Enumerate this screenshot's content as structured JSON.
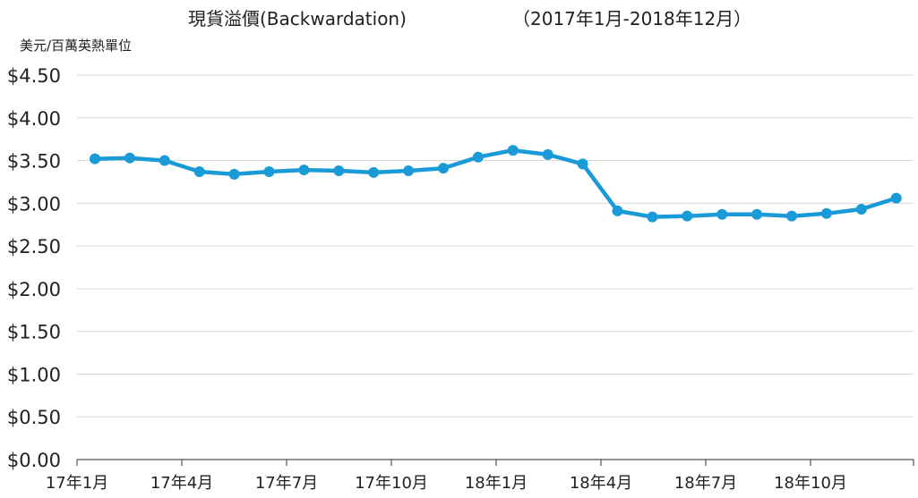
{
  "chart_data": {
    "type": "line",
    "title": "現貨溢價(Backwardation)",
    "subtitle": "（2017年1月-2018年12月）",
    "ylabel": "美元/百萬英熱單位",
    "xlabel": "",
    "ylim": [
      0,
      4.5
    ],
    "yticks": [
      "$0.00",
      "$0.50",
      "$1.00",
      "$1.50",
      "$2.00",
      "$2.50",
      "$3.00",
      "$3.50",
      "$4.00",
      "$4.50"
    ],
    "x_tick_labels": [
      "17年1月",
      "17年4月",
      "17年7月",
      "17年10月",
      "18年1月",
      "18年4月",
      "18年7月",
      "18年10月"
    ],
    "grid": true,
    "legend": "none",
    "color": "#1a9ad6",
    "series": [
      {
        "values": [
          3.52,
          3.53,
          3.5,
          3.37,
          3.34,
          3.37,
          3.39,
          3.38,
          3.36,
          3.38,
          3.41,
          3.54,
          3.62,
          3.57,
          3.46,
          2.91,
          2.84,
          2.85,
          2.87,
          2.87,
          2.85,
          2.88,
          2.93,
          3.06
        ]
      }
    ]
  }
}
